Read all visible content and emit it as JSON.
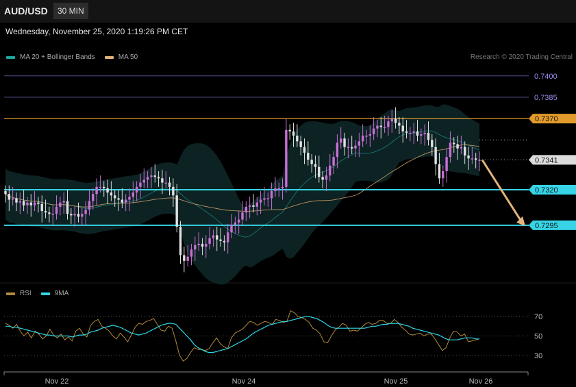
{
  "header": {
    "symbol": "AUD/USD",
    "timeframe": "30 MIN",
    "datetime": "Wednesday, November 25, 2020 1:19:26 PM CET"
  },
  "legend": {
    "price_items": [
      {
        "label": "MA 20 + Bollinger Bands",
        "color": "#1aa7a0"
      },
      {
        "label": "MA 50",
        "color": "#e2b07a"
      }
    ],
    "rsi_items": [
      {
        "label": "RSI",
        "color": "#b38a3a"
      },
      {
        "label": "9MA",
        "color": "#2fd8e8"
      }
    ],
    "credit": "Research © 2020 Trading Central"
  },
  "colors": {
    "background": "#000000",
    "candle_up": "#c86fd6",
    "candle_down": "#e0e0e0",
    "support": "#36d4e6",
    "resistance": "#e29a2a",
    "level_purple": "#7b6fc7",
    "arrow": "#e3b47c",
    "bands": "#0e2627"
  },
  "chart_data": [
    {
      "type": "candlestick",
      "title": "AUD/USD 30 MIN",
      "ylim": [
        0.7255,
        0.741
      ],
      "price_axis_labels": [
        "0.7400",
        "0.7385",
        "0.7370",
        "0.7341",
        "0.7320",
        "0.7295"
      ],
      "current_price": 0.7341,
      "levels": [
        {
          "value": 0.74,
          "label": "0.7400",
          "kind": "level"
        },
        {
          "value": 0.7385,
          "label": "0.7385",
          "kind": "level"
        },
        {
          "value": 0.737,
          "label": "0.7370",
          "kind": "resistance"
        },
        {
          "value": 0.732,
          "label": "0.7320",
          "kind": "support"
        },
        {
          "value": 0.7295,
          "label": "0.7295",
          "kind": "support"
        }
      ],
      "x_labels": [
        "Nov 22",
        "Nov 24",
        "Nov 25",
        "Nov 26"
      ],
      "forecast_arrow": {
        "from": 0.7341,
        "to": 0.7295
      },
      "close": [
        0.7317,
        0.7313,
        0.7314,
        0.7311,
        0.7312,
        0.7309,
        0.7311,
        0.7309,
        0.7311,
        0.731,
        0.7305,
        0.7304,
        0.7303,
        0.7303,
        0.7308,
        0.7311,
        0.7312,
        0.7303,
        0.7302,
        0.7303,
        0.7301,
        0.7303,
        0.7306,
        0.7312,
        0.7317,
        0.7322,
        0.7322,
        0.7321,
        0.7318,
        0.7316,
        0.7314,
        0.7313,
        0.7311,
        0.7313,
        0.7315,
        0.7318,
        0.7322,
        0.7325,
        0.7327,
        0.7329,
        0.733,
        0.7329,
        0.7328,
        0.7325,
        0.7325,
        0.7322,
        0.7316,
        0.7294,
        0.7274,
        0.727,
        0.7273,
        0.7278,
        0.7281,
        0.7282,
        0.728,
        0.7282,
        0.7286,
        0.7288,
        0.7285,
        0.7284,
        0.7283,
        0.729,
        0.7295,
        0.7297,
        0.7299,
        0.7304,
        0.7308,
        0.7309,
        0.7308,
        0.7311,
        0.7313,
        0.7314,
        0.7314,
        0.7319,
        0.7321,
        0.7321,
        0.7322,
        0.7362,
        0.7361,
        0.7358,
        0.7354,
        0.735,
        0.7346,
        0.7341,
        0.7338,
        0.7336,
        0.7329,
        0.7327,
        0.733,
        0.7337,
        0.7343,
        0.7353,
        0.7356,
        0.735,
        0.735,
        0.7349,
        0.7351,
        0.7354,
        0.7358,
        0.7358,
        0.7359,
        0.7363,
        0.7365,
        0.7364,
        0.7364,
        0.7368,
        0.737,
        0.7367,
        0.7365,
        0.7361,
        0.736,
        0.736,
        0.7361,
        0.7358,
        0.7359,
        0.736,
        0.7355,
        0.735,
        0.7338,
        0.7328,
        0.7333,
        0.7343,
        0.7353,
        0.7352,
        0.7349,
        0.735,
        0.7344,
        0.7342,
        0.7342,
        0.7341,
        0.7341
      ]
    },
    {
      "type": "line",
      "title": "RSI",
      "ylim": [
        20,
        80
      ],
      "y_ticks": [
        70,
        50,
        30
      ],
      "series": [
        {
          "name": "RSI",
          "values": [
            63,
            61,
            58,
            62,
            55,
            50,
            54,
            48,
            55,
            52,
            47,
            50,
            57,
            51,
            48,
            52,
            46,
            49,
            45,
            55,
            58,
            52,
            49,
            61,
            65,
            67,
            60,
            58,
            55,
            50,
            47,
            53,
            49,
            44,
            51,
            59,
            63,
            62,
            65,
            66,
            68,
            62,
            56,
            55,
            60,
            58,
            45,
            30,
            24,
            27,
            33,
            38,
            36,
            36,
            35,
            37,
            43,
            48,
            42,
            39,
            37,
            48,
            53,
            55,
            57,
            61,
            65,
            64,
            61,
            63,
            65,
            64,
            62,
            67,
            66,
            64,
            65,
            76,
            74,
            70,
            69,
            67,
            64,
            58,
            56,
            52,
            44,
            43,
            50,
            56,
            59,
            63,
            61,
            55,
            56,
            55,
            58,
            62,
            64,
            62,
            63,
            66,
            66,
            63,
            63,
            67,
            64,
            59,
            56,
            52,
            51,
            52,
            53,
            50,
            52,
            52,
            47,
            41,
            35,
            38,
            48,
            55,
            54,
            50,
            52,
            44,
            45,
            46,
            47
          ]
        },
        {
          "name": "9MA",
          "values": [
            60,
            60,
            59,
            59,
            58,
            57,
            56,
            55,
            54,
            53,
            52,
            51,
            51,
            50,
            50,
            50,
            50,
            50,
            49,
            50,
            51,
            51,
            52,
            54,
            55,
            56,
            58,
            59,
            60,
            61,
            60,
            59,
            57,
            55,
            53,
            52,
            51,
            52,
            53,
            55,
            57,
            59,
            61,
            62,
            63,
            63,
            62,
            58,
            54,
            50,
            46,
            41,
            38,
            36,
            34,
            33,
            33,
            34,
            35,
            36,
            37,
            39,
            41,
            43,
            45,
            47,
            50,
            53,
            55,
            57,
            59,
            61,
            62,
            63,
            64,
            65,
            65,
            66,
            67,
            68,
            69,
            70,
            70,
            69,
            68,
            66,
            64,
            61,
            59,
            58,
            58,
            58,
            58,
            58,
            58,
            58,
            58,
            58,
            59,
            60,
            60,
            61,
            62,
            62,
            63,
            63,
            63,
            62,
            61,
            60,
            58,
            57,
            56,
            55,
            54,
            53,
            52,
            51,
            49,
            47,
            46,
            46,
            46,
            47,
            48,
            48,
            48,
            47,
            47
          ]
        }
      ]
    }
  ]
}
